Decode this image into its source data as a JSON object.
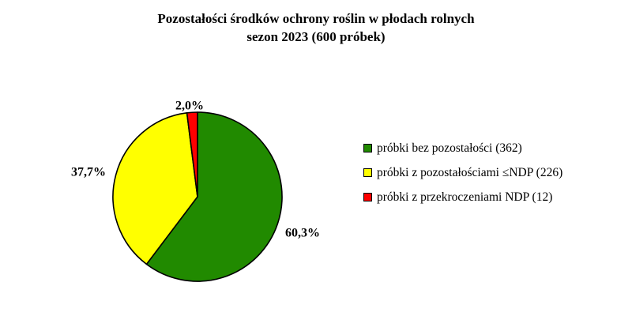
{
  "title": "Pozostałości środków ochrony roślin w płodach rolnych",
  "subtitle": "sezon 2023 (600 próbek)",
  "chart_data": {
    "type": "pie",
    "title": "Pozostałości środków ochrony roślin w płodach rolnych",
    "subtitle": "sezon 2023 (600 próbek)",
    "legend_position": "right",
    "slices": [
      {
        "label": "próbki bez pozostałości (362)",
        "count": 362,
        "value": 60.3,
        "value_label": "60,3%",
        "color": "#218a00"
      },
      {
        "label": "próbki z pozostałościami ≤NDP (226)",
        "count": 226,
        "value": 37.7,
        "value_label": "37,7%",
        "color": "#ffff00"
      },
      {
        "label": "próbki z przekroczeniami NDP (12)",
        "count": 12,
        "value": 2.0,
        "value_label": "2,0%",
        "color": "#ff0000"
      }
    ]
  }
}
